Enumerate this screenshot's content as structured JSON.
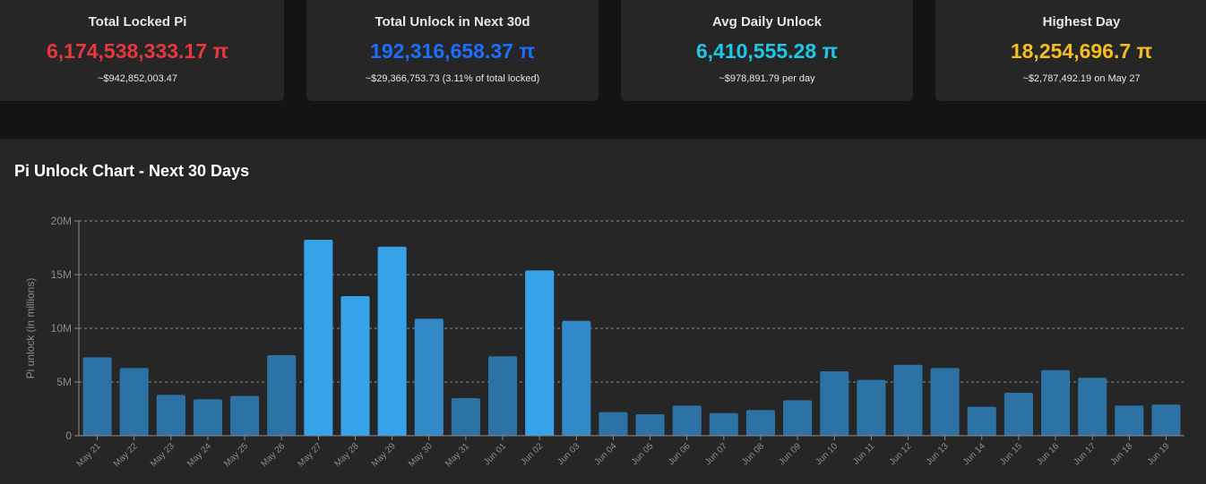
{
  "cards": [
    {
      "title": "Total Locked Pi",
      "value": "6,174,538,333.17 π",
      "sub": "~$942,852,003.47",
      "color": "#e8383d"
    },
    {
      "title": "Total Unlock in Next 30d",
      "value": "192,316,658.37 π",
      "sub": "~$29,366,753.73 (3.11% of total locked)",
      "color": "#1a6fff"
    },
    {
      "title": "Avg Daily Unlock",
      "value": "6,410,555.28 π",
      "sub": "~$978,891.79 per day",
      "color": "#1fc8ea"
    },
    {
      "title": "Highest Day",
      "value": "18,254,696.7 π",
      "sub": "~$2,787,492.19 on May 27",
      "color": "#f5bd1f"
    }
  ],
  "chart": {
    "title": "Pi Unlock Chart - Next 30 Days"
  },
  "chart_data": {
    "type": "bar",
    "title": "Pi Unlock Chart - Next 30 Days",
    "ylabel": "Pi unlock (in millions)",
    "ylim": [
      0,
      20
    ],
    "yticks": [
      "0",
      "5M",
      "10M",
      "15M",
      "20M"
    ],
    "grid": true,
    "categories": [
      "May 21",
      "May 22",
      "May 23",
      "May 24",
      "May 25",
      "May 26",
      "May 27",
      "May 28",
      "May 29",
      "May 30",
      "May 31",
      "Jun 01",
      "Jun 02",
      "Jun 03",
      "Jun 04",
      "Jun 05",
      "Jun 06",
      "Jun 07",
      "Jun 08",
      "Jun 09",
      "Jun 10",
      "Jun 11",
      "Jun 12",
      "Jun 13",
      "Jun 14",
      "Jun 15",
      "Jun 16",
      "Jun 17",
      "Jun 18",
      "Jun 19"
    ],
    "values": [
      7.3,
      6.3,
      3.8,
      3.4,
      3.7,
      7.5,
      18.25,
      13.0,
      17.6,
      10.9,
      3.5,
      7.4,
      15.4,
      10.7,
      2.2,
      2.0,
      2.8,
      2.1,
      2.4,
      3.3,
      6.0,
      5.2,
      6.6,
      6.3,
      2.7,
      4.0,
      6.1,
      5.4,
      2.8,
      2.9
    ],
    "colors": {
      "low": "#2c72a4",
      "mid": "#3189c8",
      "high": "#36a2e8",
      "grid": "#8c8c8c",
      "axis": "#8c8c8c",
      "tick": "#8c8c8c"
    }
  }
}
